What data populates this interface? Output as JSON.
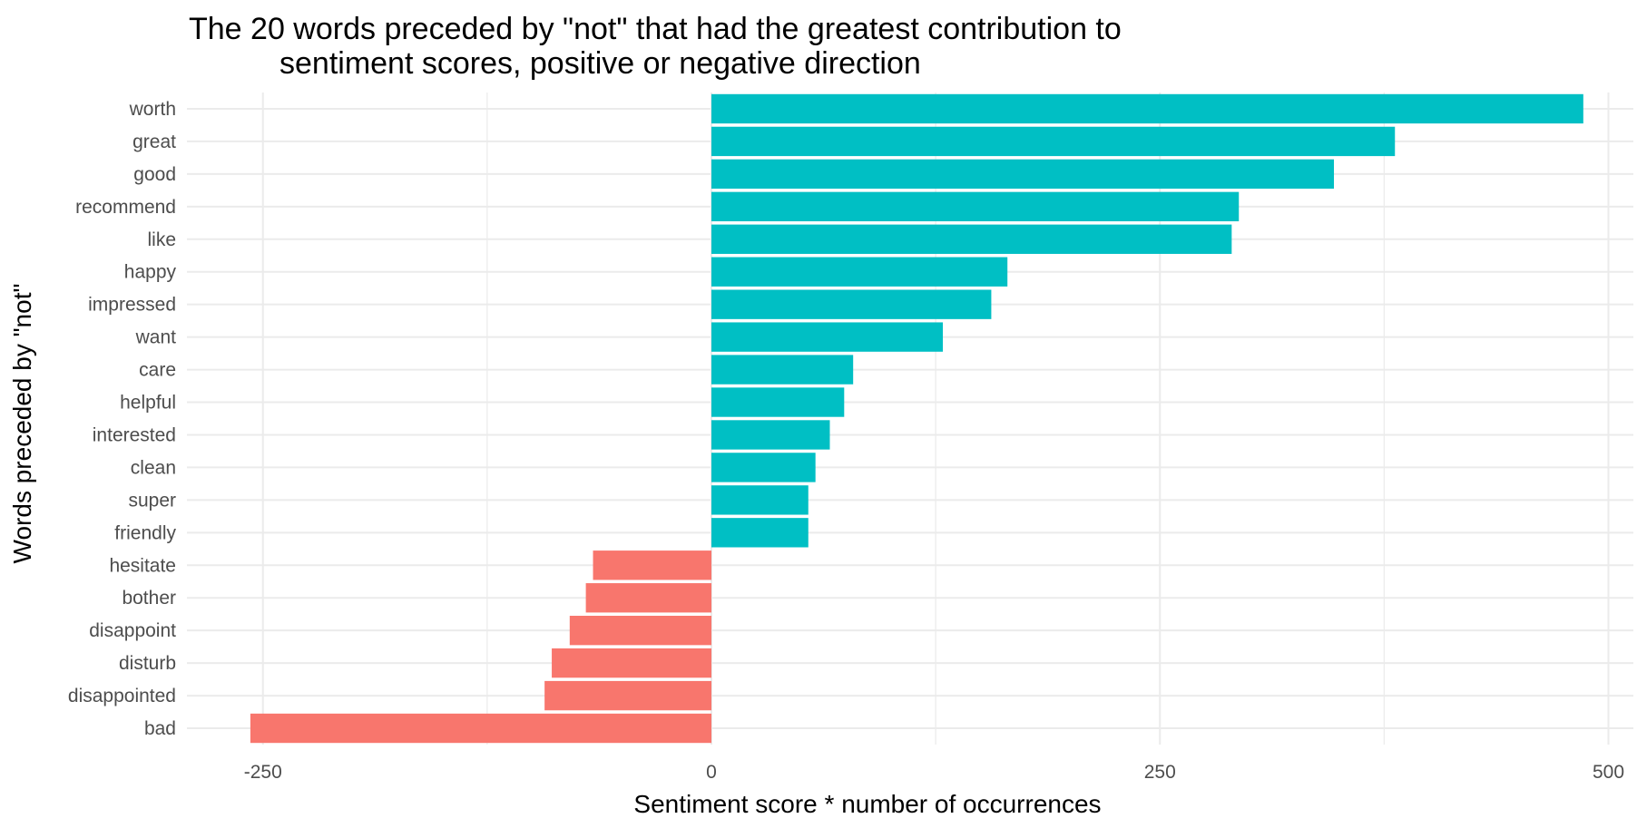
{
  "chart_data": {
    "type": "bar",
    "orientation": "horizontal",
    "title_lines": [
      "The 20 words preceded by \"not\" that had the greatest contribution to",
      "sentiment scores, positive or negative direction"
    ],
    "xlabel": "Sentiment score * number of occurrences",
    "ylabel": "Words preceded by \"not\"",
    "xlim": [
      -290,
      510
    ],
    "x_ticks": [
      -250,
      0,
      250,
      500
    ],
    "x_tick_labels": [
      "-250",
      "0",
      "250",
      "500"
    ],
    "x_minor_gridlines": [
      -125,
      125,
      375
    ],
    "grid": true,
    "legend": "none",
    "colors": {
      "positive": "#00bfc4",
      "negative": "#f8766d",
      "grid": "#ebebeb"
    },
    "categories": [
      "worth",
      "great",
      "good",
      "recommend",
      "like",
      "happy",
      "impressed",
      "want",
      "care",
      "helpful",
      "interested",
      "clean",
      "super",
      "friendly",
      "hesitate",
      "bother",
      "disappoint",
      "disturb",
      "disappointed",
      "bad"
    ],
    "values": [
      486,
      381,
      347,
      294,
      290,
      165,
      156,
      129,
      79,
      74,
      66,
      58,
      54,
      54,
      -66,
      -70,
      -79,
      -89,
      -93,
      -257
    ]
  }
}
